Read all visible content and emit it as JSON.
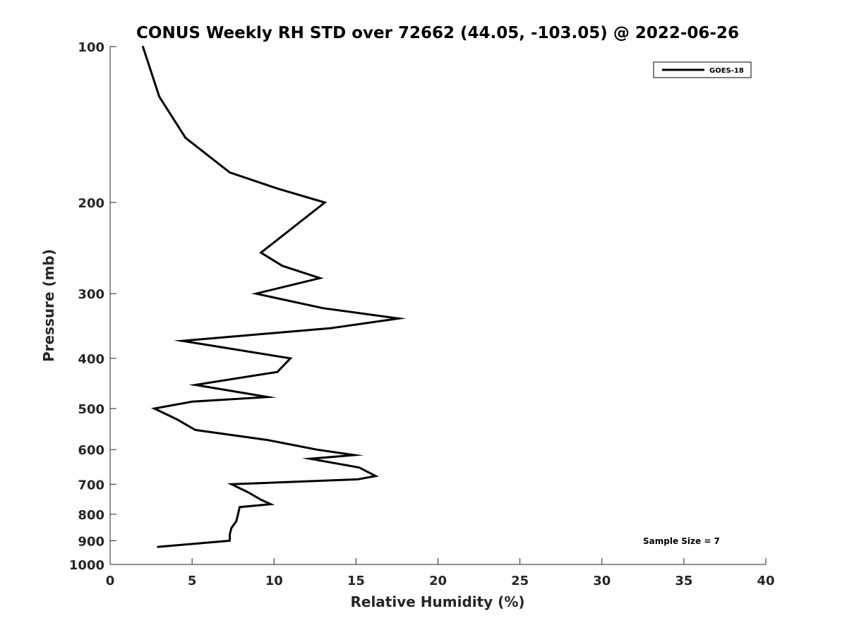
{
  "chart_data": {
    "type": "line",
    "title": "CONUS Weekly RH STD over 72662 (44.05, -103.05) @ 2022-06-26",
    "xlabel": "Relative Humidity (%)",
    "ylabel": "Pressure (mb)",
    "xlim": [
      0,
      40
    ],
    "ylim": [
      100,
      1000
    ],
    "y_scale": "log",
    "y_reversed": true,
    "x_ticks": [
      "0",
      "5",
      "10",
      "15",
      "20",
      "25",
      "30",
      "35",
      "40"
    ],
    "y_ticks": [
      "100",
      "200",
      "300",
      "400",
      "500",
      "600",
      "700",
      "800",
      "900",
      "1000"
    ],
    "grid": false,
    "legend_position": "top-right",
    "series": [
      {
        "name": "GOES-18",
        "color": "#000000",
        "points": [
          {
            "x": 2.0,
            "y": 100
          },
          {
            "x": 3.0,
            "y": 125
          },
          {
            "x": 4.6,
            "y": 150
          },
          {
            "x": 7.3,
            "y": 175
          },
          {
            "x": 10.2,
            "y": 188
          },
          {
            "x": 13.1,
            "y": 200
          },
          {
            "x": 9.2,
            "y": 250
          },
          {
            "x": 10.5,
            "y": 265
          },
          {
            "x": 12.8,
            "y": 280
          },
          {
            "x": 8.9,
            "y": 300
          },
          {
            "x": 13.0,
            "y": 320
          },
          {
            "x": 17.6,
            "y": 335
          },
          {
            "x": 13.4,
            "y": 350
          },
          {
            "x": 4.4,
            "y": 370
          },
          {
            "x": 11.0,
            "y": 400
          },
          {
            "x": 10.2,
            "y": 425
          },
          {
            "x": 5.2,
            "y": 450
          },
          {
            "x": 9.6,
            "y": 475
          },
          {
            "x": 5.0,
            "y": 485
          },
          {
            "x": 2.7,
            "y": 500
          },
          {
            "x": 4.1,
            "y": 525
          },
          {
            "x": 5.2,
            "y": 550
          },
          {
            "x": 9.6,
            "y": 575
          },
          {
            "x": 12.6,
            "y": 600
          },
          {
            "x": 14.9,
            "y": 615
          },
          {
            "x": 12.2,
            "y": 625
          },
          {
            "x": 15.2,
            "y": 650
          },
          {
            "x": 16.2,
            "y": 675
          },
          {
            "x": 15.1,
            "y": 685
          },
          {
            "x": 7.4,
            "y": 700
          },
          {
            "x": 8.4,
            "y": 725
          },
          {
            "x": 9.2,
            "y": 750
          },
          {
            "x": 9.8,
            "y": 765
          },
          {
            "x": 7.9,
            "y": 775
          },
          {
            "x": 7.8,
            "y": 800
          },
          {
            "x": 7.7,
            "y": 825
          },
          {
            "x": 7.4,
            "y": 850
          },
          {
            "x": 7.3,
            "y": 875
          },
          {
            "x": 7.3,
            "y": 900
          },
          {
            "x": 2.9,
            "y": 925
          }
        ]
      }
    ],
    "annotation": "Sample Size = 7"
  }
}
